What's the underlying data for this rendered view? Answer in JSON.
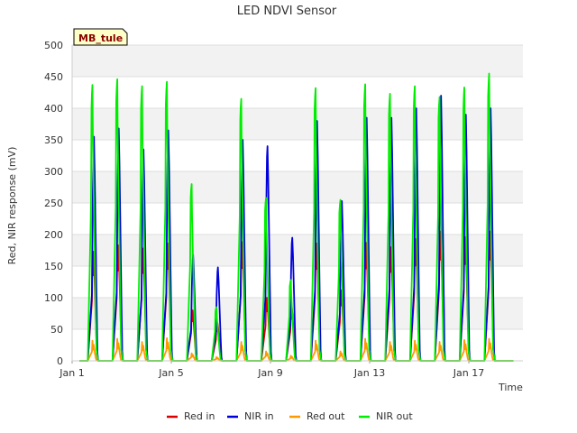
{
  "chart_data": {
    "type": "line",
    "title": "LED NDVI Sensor",
    "xlabel": "Time",
    "ylabel": "Red, NIR response (mV)",
    "site_tag": "MB_tule",
    "ylim": [
      0,
      500
    ],
    "xlim": [
      "Jan 1",
      "Jan 19"
    ],
    "y_ticks": [
      0,
      50,
      100,
      150,
      200,
      250,
      300,
      350,
      400,
      450,
      500
    ],
    "x_ticks": [
      "Jan 1",
      "Jan 5",
      "Jan 9",
      "Jan 13",
      "Jan 17"
    ],
    "grid": "horizontal bands",
    "legend_position": "bottom",
    "day_offsets": [
      0.83,
      1.83,
      2.83,
      3.83,
      4.83,
      5.83,
      6.83,
      7.83,
      8.83,
      9.83,
      10.83,
      11.83,
      12.83,
      13.83,
      14.83,
      15.83,
      16.83
    ],
    "series": [
      {
        "name": "Red in",
        "color": "#dd0000",
        "daily_peak": [
          173,
          183,
          178,
          186,
          80,
          60,
          188,
          100,
          85,
          186,
          112,
          187,
          180,
          193,
          205,
          196,
          205
        ]
      },
      {
        "name": "NIR in",
        "color": "#0000dd",
        "daily_peak": [
          355,
          368,
          335,
          365,
          168,
          148,
          350,
          340,
          195,
          380,
          253,
          385,
          385,
          400,
          420,
          390,
          400
        ]
      },
      {
        "name": "Red out",
        "color": "#ff9900",
        "daily_peak": [
          32,
          35,
          30,
          36,
          12,
          6,
          30,
          15,
          8,
          32,
          15,
          35,
          30,
          32,
          30,
          33,
          35
        ]
      },
      {
        "name": "NIR out",
        "color": "#00ee00",
        "daily_peak": [
          437,
          446,
          435,
          442,
          280,
          85,
          415,
          258,
          128,
          432,
          255,
          438,
          423,
          435,
          418,
          433,
          455
        ]
      }
    ]
  }
}
